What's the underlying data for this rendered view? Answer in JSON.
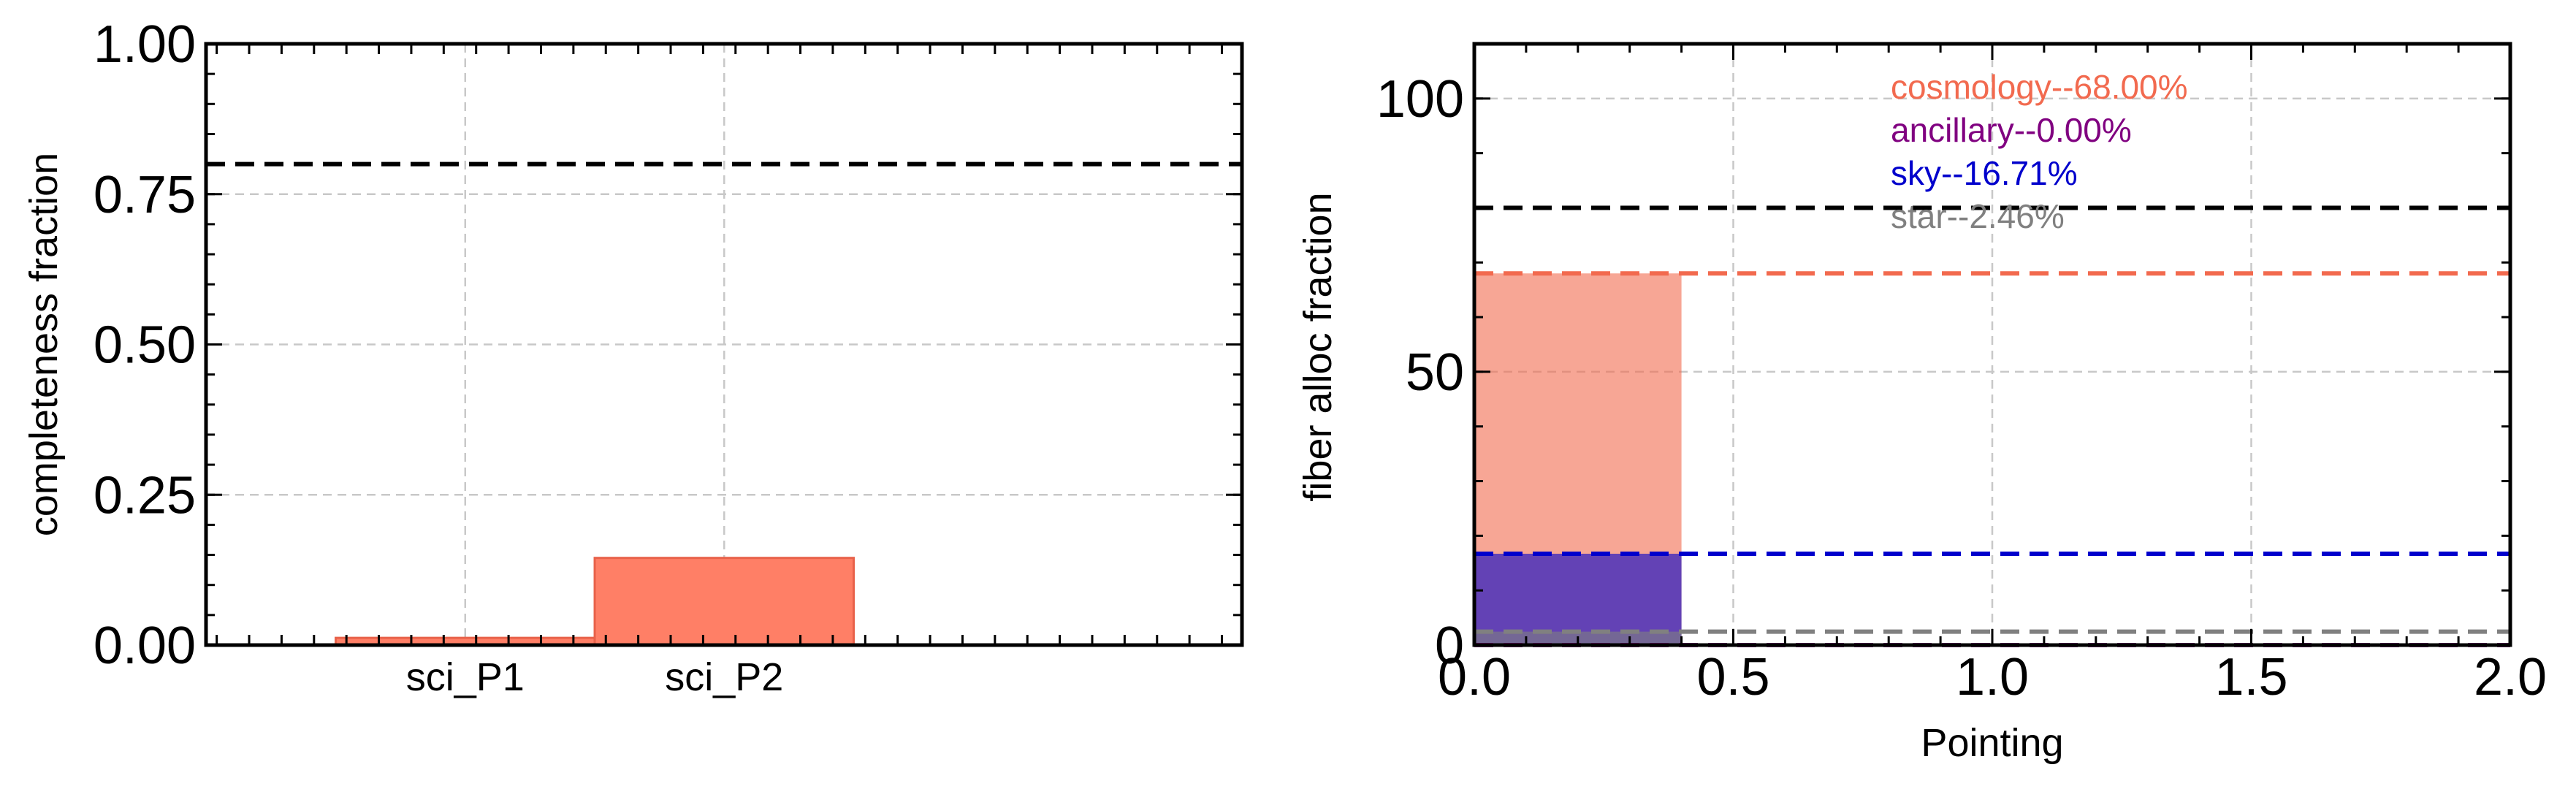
{
  "chart_data": [
    {
      "type": "bar",
      "categories": [
        "sci_P1",
        "sci_P2"
      ],
      "values": [
        0.012,
        0.145
      ],
      "title": "",
      "xlabel": "",
      "ylabel": "completeness fraction",
      "ylim": [
        0,
        1.0
      ],
      "yticks": [
        "0.00",
        "0.25",
        "0.50",
        "0.75",
        "1.00"
      ],
      "reference_line": 0.8,
      "bar_color": "#ff7f66",
      "grid": true
    },
    {
      "type": "bar",
      "x": [
        0.0
      ],
      "bar_width": 0.4,
      "series": [
        {
          "name": "cosmology--68.00%",
          "values": [
            68.0
          ],
          "color": "#f26a4f"
        },
        {
          "name": "ancillary--0.00%",
          "values": [
            0.0
          ],
          "color": "#800080"
        },
        {
          "name": "sky--16.71%",
          "values": [
            16.71
          ],
          "color": "#0000cc"
        },
        {
          "name": "star--2.46%",
          "values": [
            2.46
          ],
          "color": "#808080"
        }
      ],
      "title": "",
      "xlabel": "Pointing",
      "ylabel": "fiber alloc fraction",
      "xlim": [
        0,
        2.0
      ],
      "ylim": [
        0,
        110
      ],
      "xticks": [
        "0.0",
        "0.5",
        "1.0",
        "1.5",
        "2.0"
      ],
      "yticks": [
        "0",
        "50",
        "100"
      ],
      "reference_line": 80,
      "legend": "top-center",
      "grid": true
    }
  ]
}
